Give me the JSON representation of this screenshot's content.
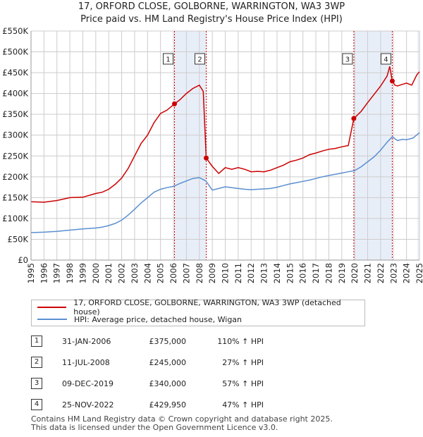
{
  "chart_data": {
    "type": "line",
    "title": "17, ORFORD CLOSE, GOLBORNE, WARRINGTON, WA3 3WP",
    "subtitle": "Price paid vs. HM Land Registry's House Price Index (HPI)",
    "xlim": [
      1995,
      2025
    ],
    "ylim": [
      0,
      550000
    ],
    "y_ticks": [
      0,
      50000,
      100000,
      150000,
      200000,
      250000,
      300000,
      350000,
      400000,
      450000,
      500000,
      550000
    ],
    "y_tick_labels": [
      "£0",
      "£50K",
      "£100K",
      "£150K",
      "£200K",
      "£250K",
      "£300K",
      "£350K",
      "£400K",
      "£450K",
      "£500K",
      "£550K"
    ],
    "x_ticks": [
      1995,
      1996,
      1997,
      1998,
      1999,
      2000,
      2001,
      2002,
      2003,
      2004,
      2005,
      2006,
      2007,
      2008,
      2009,
      2010,
      2011,
      2012,
      2013,
      2014,
      2015,
      2016,
      2017,
      2018,
      2019,
      2020,
      2021,
      2022,
      2023,
      2024,
      2025
    ],
    "x_tick_labels": [
      "1995",
      "1996",
      "1997",
      "1998",
      "1999",
      "2000",
      "2001",
      "2002",
      "2003",
      "2004",
      "2005",
      "2006",
      "2007",
      "2008",
      "2009",
      "2010",
      "2011",
      "2012",
      "2013",
      "2014",
      "2015",
      "2016",
      "2017",
      "2018",
      "2019",
      "2020",
      "2021",
      "2022",
      "2023",
      "2024",
      "2025"
    ],
    "grid": true,
    "colors": {
      "property": "#cc0000",
      "hpi": "#5b8fd0",
      "band": "#e8eef8",
      "grid": "#cccccc"
    },
    "series": [
      {
        "name": "17, ORFORD CLOSE, GOLBORNE, WARRINGTON, WA3 3WP (detached house)",
        "color": "#cc0000",
        "x": [
          1995.0,
          1996.0,
          1997.0,
          1998.0,
          1999.0,
          2000.0,
          2000.5,
          2001.0,
          2001.5,
          2002.0,
          2002.5,
          2003.0,
          2003.5,
          2004.0,
          2004.5,
          2005.0,
          2005.5,
          2006.08,
          2006.5,
          2007.0,
          2007.5,
          2008.0,
          2008.3,
          2008.53,
          2009.0,
          2009.5,
          2010.0,
          2010.5,
          2011.0,
          2011.5,
          2012.0,
          2012.5,
          2013.0,
          2013.5,
          2014.0,
          2014.5,
          2015.0,
          2015.5,
          2016.0,
          2016.5,
          2017.0,
          2017.5,
          2018.0,
          2018.5,
          2019.0,
          2019.5,
          2019.93,
          2020.0,
          2020.5,
          2021.0,
          2021.5,
          2022.0,
          2022.5,
          2022.7,
          2022.9,
          2023.1,
          2023.3,
          2023.7,
          2024.0,
          2024.4,
          2024.8,
          2025.0
        ],
        "values": [
          140000,
          139000,
          143000,
          150000,
          151000,
          160000,
          163000,
          170000,
          182000,
          197000,
          220000,
          250000,
          280000,
          300000,
          330000,
          352000,
          360000,
          375000,
          385000,
          400000,
          412000,
          420000,
          405000,
          245000,
          225000,
          208000,
          222000,
          218000,
          222000,
          218000,
          212000,
          213000,
          212000,
          216000,
          222000,
          228000,
          236000,
          240000,
          245000,
          253000,
          257000,
          262000,
          266000,
          268000,
          272000,
          275000,
          340000,
          342000,
          357000,
          378000,
          398000,
          418000,
          442000,
          465000,
          429950,
          420000,
          418000,
          422000,
          425000,
          420000,
          445000,
          452000
        ]
      },
      {
        "name": "HPI: Average price, detached house, Wigan",
        "color": "#5b8fd0",
        "x": [
          1995.0,
          1996.0,
          1997.0,
          1998.0,
          1999.0,
          2000.0,
          2000.5,
          2001.0,
          2001.5,
          2002.0,
          2002.5,
          2003.0,
          2003.5,
          2004.0,
          2004.5,
          2005.0,
          2005.5,
          2006.0,
          2006.5,
          2007.0,
          2007.5,
          2008.0,
          2008.5,
          2009.0,
          2009.5,
          2010.0,
          2010.5,
          2011.0,
          2011.5,
          2012.0,
          2012.5,
          2013.0,
          2013.5,
          2014.0,
          2014.5,
          2015.0,
          2015.5,
          2016.0,
          2016.5,
          2017.0,
          2017.5,
          2018.0,
          2018.5,
          2019.0,
          2019.5,
          2020.0,
          2020.5,
          2021.0,
          2021.5,
          2022.0,
          2022.5,
          2022.9,
          2023.3,
          2023.7,
          2024.0,
          2024.5,
          2025.0
        ],
        "values": [
          66000,
          67000,
          69000,
          72000,
          75000,
          77000,
          79000,
          83000,
          88000,
          96000,
          108000,
          122000,
          137000,
          150000,
          163000,
          170000,
          174000,
          177000,
          184000,
          190000,
          196000,
          198000,
          190000,
          168000,
          172000,
          176000,
          174000,
          172000,
          170000,
          169000,
          170000,
          171000,
          172000,
          175000,
          179000,
          183000,
          186000,
          189000,
          192000,
          196000,
          200000,
          203000,
          206000,
          209000,
          212000,
          215000,
          224000,
          236000,
          248000,
          264000,
          283000,
          296000,
          287000,
          290000,
          289000,
          293000,
          306000
        ]
      }
    ],
    "sales": [
      {
        "num": "1",
        "x": 2006.08,
        "value": 375000
      },
      {
        "num": "2",
        "x": 2008.53,
        "value": 245000
      },
      {
        "num": "3",
        "x": 2019.93,
        "value": 340000
      },
      {
        "num": "4",
        "x": 2022.9,
        "value": 429950
      }
    ],
    "bands": [
      [
        2006.08,
        2008.53
      ],
      [
        2019.93,
        2022.9
      ],
      [
        2024.85,
        2025.0
      ]
    ]
  },
  "legend": {
    "property_label": "17, ORFORD CLOSE, GOLBORNE, WARRINGTON, WA3 3WP (detached house)",
    "hpi_label": "HPI: Average price, detached house, Wigan"
  },
  "sales_table": [
    {
      "num": "1",
      "date": "31-JAN-2006",
      "price": "£375,000",
      "hpi": "110% ↑ HPI"
    },
    {
      "num": "2",
      "date": "11-JUL-2008",
      "price": "£245,000",
      "hpi": "27% ↑ HPI"
    },
    {
      "num": "3",
      "date": "09-DEC-2019",
      "price": "£340,000",
      "hpi": "57% ↑ HPI"
    },
    {
      "num": "4",
      "date": "25-NOV-2022",
      "price": "£429,950",
      "hpi": "47% ↑ HPI"
    }
  ],
  "footer": {
    "line1": "Contains HM Land Registry data © Crown copyright and database right 2025.",
    "line2": "This data is licensed under the Open Government Licence v3.0."
  }
}
